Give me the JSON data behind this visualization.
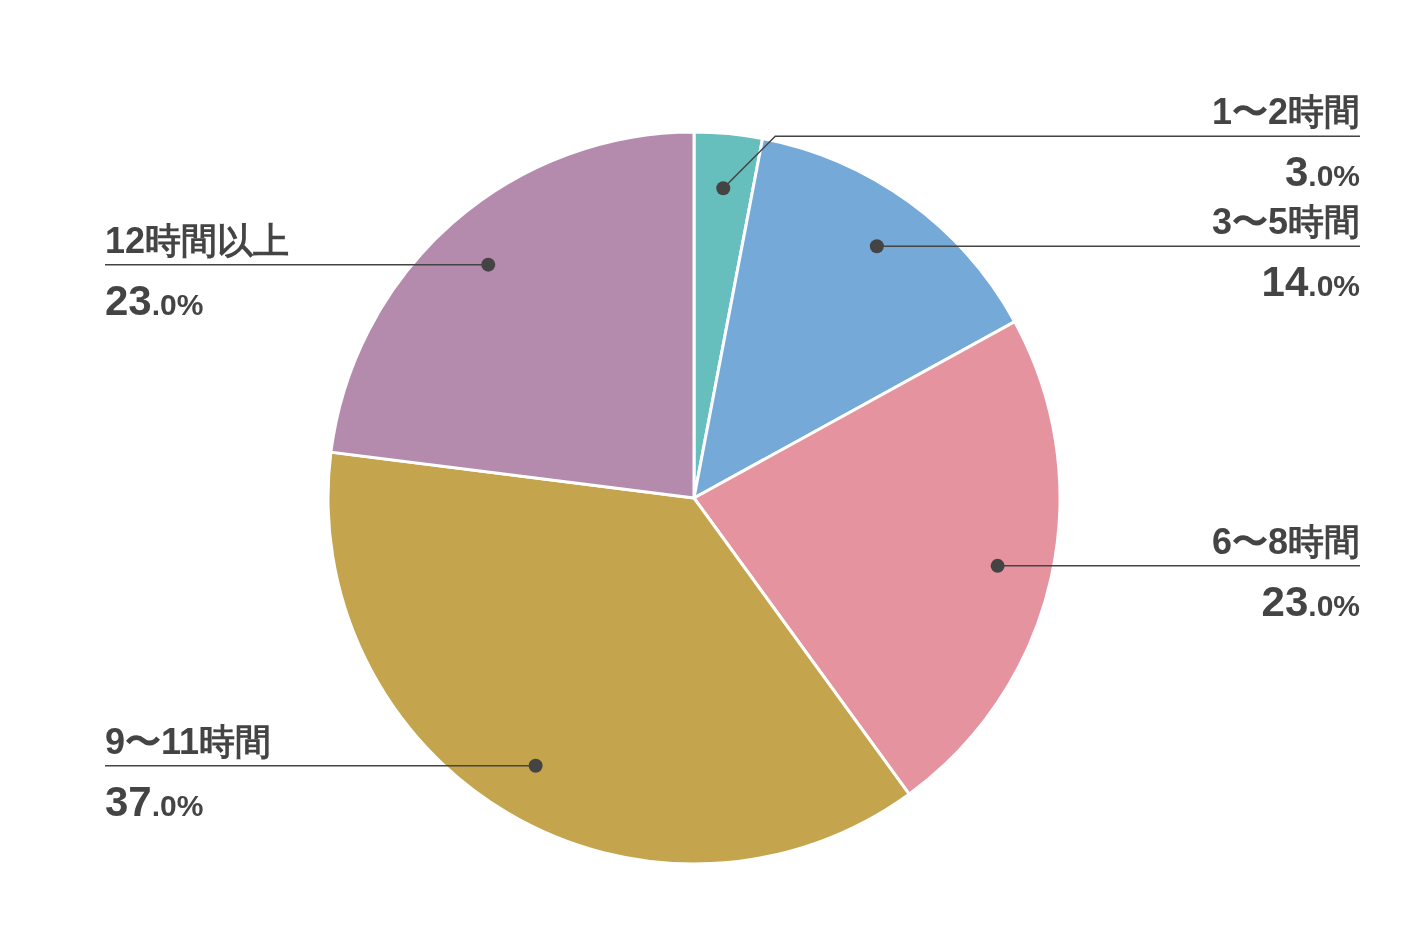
{
  "chart_data": {
    "type": "pie",
    "categories": [
      "1〜2時間",
      "3〜5時間",
      "6〜8時間",
      "9〜11時間",
      "12時間以上"
    ],
    "values": [
      3,
      14,
      23,
      37,
      23
    ],
    "colors": [
      "#66bfbd",
      "#74a9d8",
      "#e5949f",
      "#c4a44c",
      "#b48bad"
    ],
    "value_labels": [
      "3.0%",
      "14.0%",
      "23.0%",
      "37.0%",
      "23.0%"
    ],
    "legend": false
  }
}
